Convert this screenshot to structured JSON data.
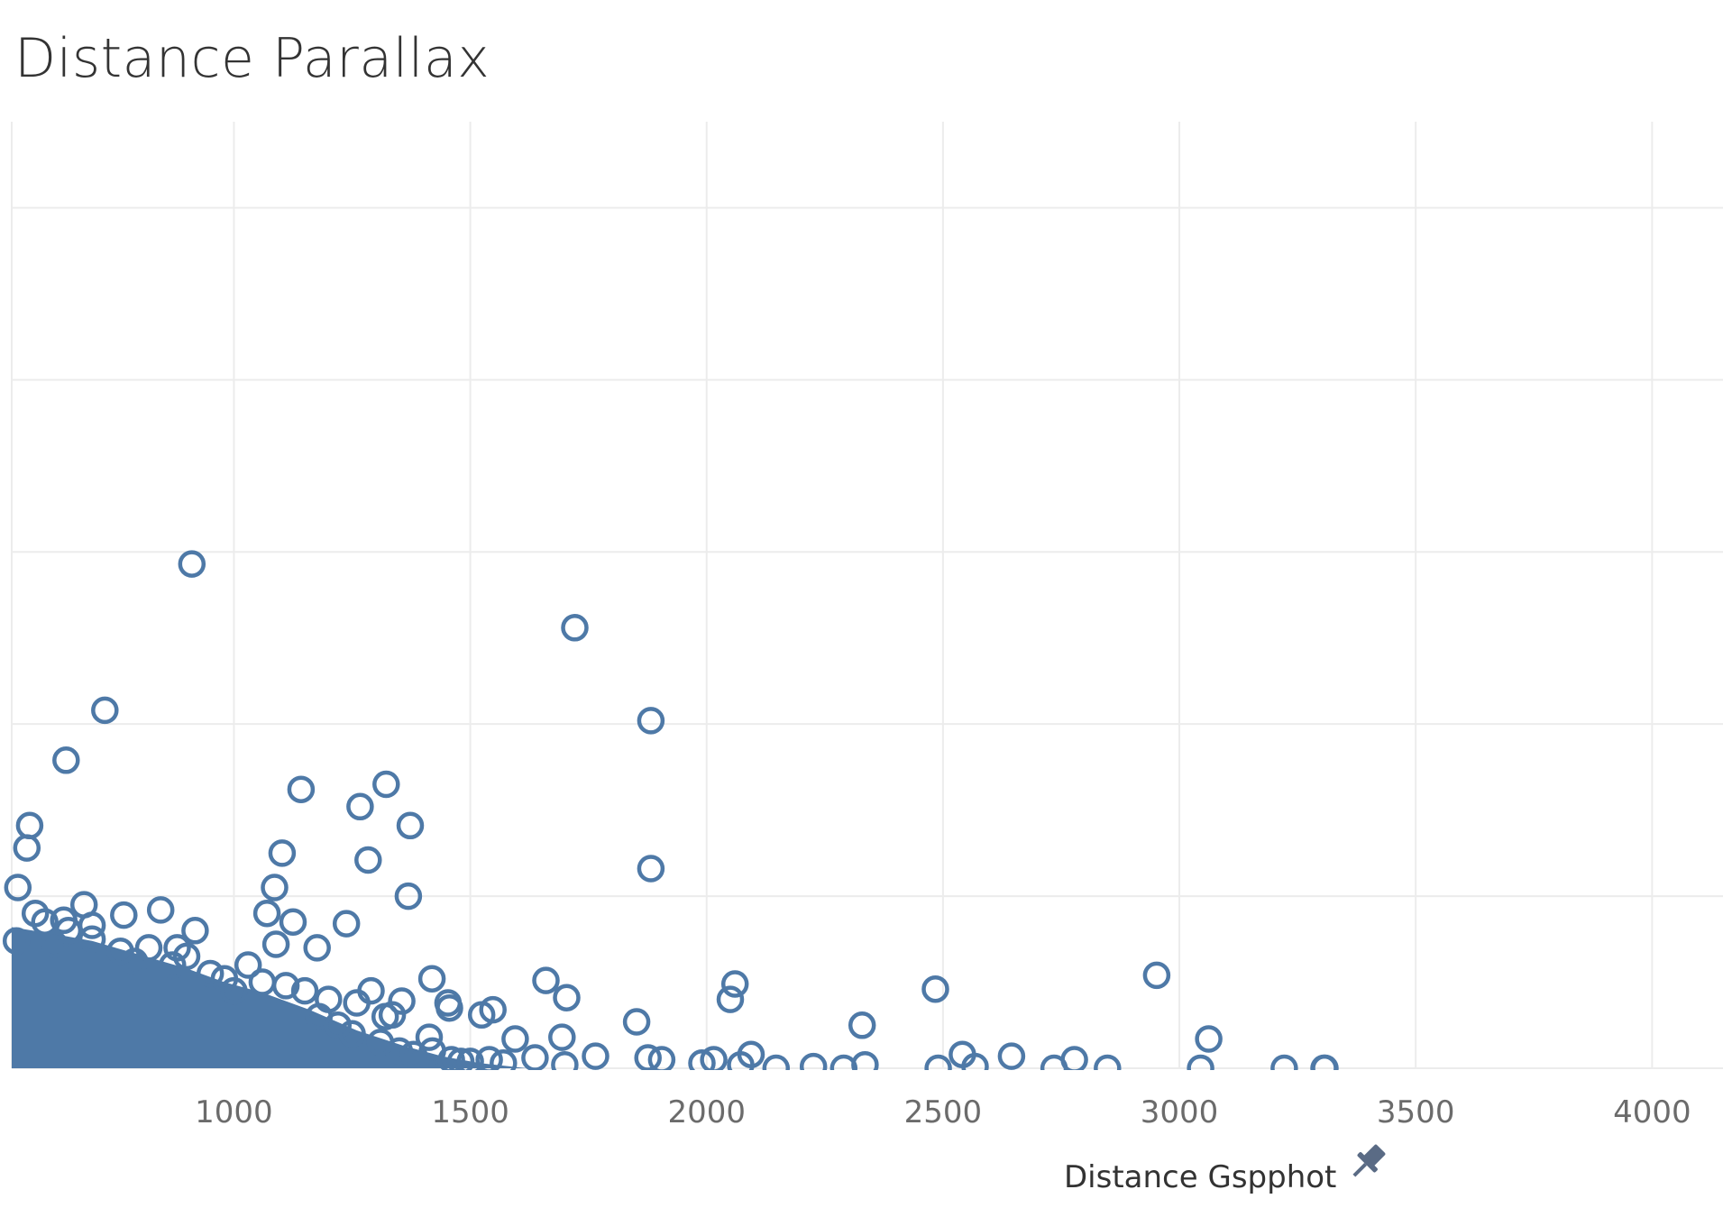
{
  "chart_data": {
    "type": "scatter",
    "title": "Distance Parallax",
    "xlabel": "Distance Gspphot",
    "ylabel": "",
    "xlim": [
      530,
      4150
    ],
    "ylim": [
      0,
      5.5
    ],
    "x_ticks": [
      1000,
      1500,
      2000,
      2500,
      3000,
      3500,
      4000
    ],
    "grid": true,
    "marker": "hollow-circle",
    "color": "#4e79a7",
    "points": [
      [
        911,
        2.93
      ],
      [
        1721,
        2.56
      ],
      [
        1882,
        2.02
      ],
      [
        1882,
        1.16
      ],
      [
        727,
        2.08
      ],
      [
        645,
        1.79
      ],
      [
        1142,
        1.62
      ],
      [
        1267,
        1.52
      ],
      [
        1322,
        1.65
      ],
      [
        1373,
        1.41
      ],
      [
        1369,
        1.0
      ],
      [
        1284,
        1.21
      ],
      [
        1102,
        1.25
      ],
      [
        1086,
        1.05
      ],
      [
        1238,
        0.84
      ],
      [
        1176,
        0.7
      ],
      [
        1125,
        0.85
      ],
      [
        1089,
        0.72
      ],
      [
        1070,
        0.9
      ],
      [
        568,
        1.41
      ],
      [
        562,
        1.28
      ],
      [
        543,
        1.05
      ],
      [
        845,
        0.92
      ],
      [
        683,
        0.95
      ],
      [
        767,
        0.89
      ],
      [
        918,
        0.8
      ],
      [
        2952,
        0.54
      ],
      [
        2484,
        0.46
      ],
      [
        2060,
        0.49
      ],
      [
        2050,
        0.4
      ],
      [
        1660,
        0.51
      ],
      [
        1704,
        0.41
      ],
      [
        1852,
        0.27
      ],
      [
        2329,
        0.25
      ],
      [
        1694,
        0.18
      ],
      [
        3062,
        0.17
      ],
      [
        1419,
        0.52
      ],
      [
        1453,
        0.38
      ],
      [
        1548,
        0.34
      ],
      [
        1524,
        0.31
      ],
      [
        1456,
        0.35
      ],
      [
        1335,
        0.31
      ],
      [
        1355,
        0.39
      ],
      [
        1595,
        0.17
      ],
      [
        2094,
        0.08
      ],
      [
        2645,
        0.07
      ],
      [
        2541,
        0.08
      ],
      [
        2778,
        0.05
      ],
      [
        2015,
        0.05
      ],
      [
        1765,
        0.07
      ],
      [
        1637,
        0.06
      ],
      [
        1413,
        0.18
      ],
      [
        1876,
        0.06
      ],
      [
        1905,
        0.05
      ],
      [
        2226,
        0.01
      ],
      [
        2335,
        0.02
      ],
      [
        2568,
        0.01
      ],
      [
        2735,
        0.0
      ],
      [
        2848,
        0.0
      ],
      [
        3045,
        0.0
      ],
      [
        3222,
        0.0
      ],
      [
        3308,
        0.0
      ],
      [
        2147,
        0.0
      ],
      [
        1990,
        0.03
      ],
      [
        1700,
        0.02
      ],
      [
        1570,
        0.03
      ],
      [
        1540,
        0.05
      ],
      [
        1480,
        0.04
      ],
      [
        2072,
        0.02
      ],
      [
        3306,
        0.0
      ],
      [
        2490,
        0.0
      ],
      [
        2290,
        0.0
      ],
      [
        980,
        0.52
      ],
      [
        1030,
        0.6
      ],
      [
        1150,
        0.45
      ],
      [
        1200,
        0.4
      ],
      [
        1260,
        0.38
      ],
      [
        1290,
        0.45
      ],
      [
        1320,
        0.3
      ],
      [
        1180,
        0.3
      ],
      [
        1220,
        0.25
      ],
      [
        1250,
        0.2
      ],
      [
        1310,
        0.15
      ],
      [
        1350,
        0.1
      ],
      [
        1380,
        0.08
      ],
      [
        1420,
        0.1
      ],
      [
        1460,
        0.05
      ],
      [
        1500,
        0.04
      ],
      [
        950,
        0.55
      ],
      [
        900,
        0.65
      ],
      [
        870,
        0.6
      ],
      [
        820,
        0.7
      ],
      [
        790,
        0.62
      ],
      [
        760,
        0.68
      ],
      [
        700,
        0.75
      ],
      [
        650,
        0.8
      ],
      [
        600,
        0.85
      ],
      [
        580,
        0.9
      ],
      [
        620,
        0.72
      ],
      [
        1000,
        0.45
      ],
      [
        1060,
        0.5
      ],
      [
        1110,
        0.48
      ],
      [
        640,
        0.86
      ],
      [
        700,
        0.83
      ],
      [
        540,
        0.74
      ],
      [
        880,
        0.7
      ]
    ]
  }
}
